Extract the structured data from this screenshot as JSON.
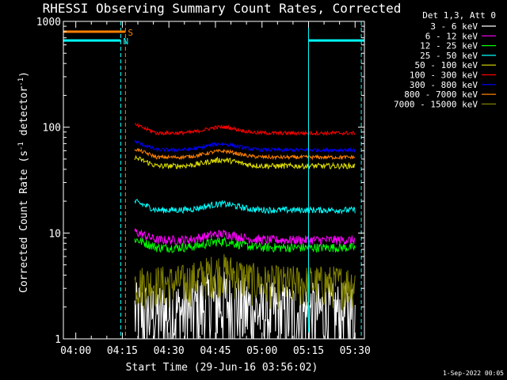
{
  "chart_data": {
    "type": "line",
    "title": "RHESSI Observing Summary Count Rates, Corrected",
    "xlabel": "Start Time (29-Jun-16 03:56:02)",
    "ylabel_main": "Corrected Count Rate (s",
    "ylabel_sup1": "-1",
    "ylabel_mid": " detector",
    "ylabel_sup2": "-1",
    "ylabel_end": ")",
    "yscale": "log",
    "ylim": [
      1,
      1000
    ],
    "xlim_minutes_after_start": [
      0,
      97
    ],
    "x_ticks": [
      {
        "label": "04:00",
        "minute": 4
      },
      {
        "label": "04:15",
        "minute": 19
      },
      {
        "label": "04:30",
        "minute": 34
      },
      {
        "label": "04:45",
        "minute": 49
      },
      {
        "label": "05:00",
        "minute": 64
      },
      {
        "label": "05:15",
        "minute": 79
      },
      {
        "label": "05:30",
        "minute": 94
      }
    ],
    "y_ticks": [
      {
        "label": "1",
        "value": 1
      },
      {
        "label": "10",
        "value": 10
      },
      {
        "label": "100",
        "value": 100
      },
      {
        "label": "1000",
        "value": 1000
      }
    ],
    "legend_header": "Det 1,3, Att 0",
    "legend_position": "right",
    "series": [
      {
        "name": "3 - 6 keV",
        "color": "#ffffff",
        "baseline": 1.8,
        "spread": 0.9,
        "mode": "low"
      },
      {
        "name": "6 - 12 keV",
        "color": "#ff00ff",
        "baseline": 8.6,
        "spread": 0.1,
        "mode": "band"
      },
      {
        "name": "12 - 25 keV",
        "color": "#00ff00",
        "baseline": 7.3,
        "spread": 0.1,
        "mode": "band"
      },
      {
        "name": "25 - 50 keV",
        "color": "#00ffff",
        "baseline": 16.5,
        "spread": 0.07,
        "mode": "band"
      },
      {
        "name": "50 - 100 keV",
        "color": "#e0e000",
        "baseline": 43,
        "spread": 0.06,
        "mode": "band"
      },
      {
        "name": "100 - 300 keV",
        "color": "#ff0000",
        "baseline": 88,
        "spread": 0.04,
        "mode": "band"
      },
      {
        "name": "300 - 800 keV",
        "color": "#0000ff",
        "baseline": 61,
        "spread": 0.04,
        "mode": "band"
      },
      {
        "name": "800 - 7000 keV",
        "color": "#ff8000",
        "baseline": 52,
        "spread": 0.04,
        "mode": "band"
      },
      {
        "name": "7000 - 15000 keV",
        "color": "#808000",
        "baseline": 3.4,
        "spread": 0.45,
        "mode": "low"
      }
    ],
    "data_window_minutes": [
      23,
      94
    ],
    "bump_center_minute": 51,
    "annotations": [
      {
        "label": "S",
        "color": "#ff8000",
        "start_minute": 0,
        "end_minute": 20,
        "value": 800
      },
      {
        "label": "N",
        "color": "#00ffff",
        "start_minute": 0,
        "end_minute": 18.5,
        "value": 660
      },
      {
        "label": "",
        "color": "#00ffff",
        "start_minute": 79,
        "end_minute": 97,
        "value": 660
      }
    ],
    "vertical_markers": [
      {
        "minute": 0,
        "color": "#00ffff",
        "style": "solid"
      },
      {
        "minute": 18.5,
        "color": "#00ffff",
        "style": "dashed"
      },
      {
        "minute": 20,
        "color": "#ff8000",
        "style": "dashed"
      },
      {
        "minute": 79,
        "color": "#00ffff",
        "style": "solid"
      },
      {
        "minute": 96,
        "color": "#00ffff",
        "style": "dashed"
      }
    ]
  },
  "footer": {
    "date_stamp": "1-Sep-2022 00:05"
  }
}
